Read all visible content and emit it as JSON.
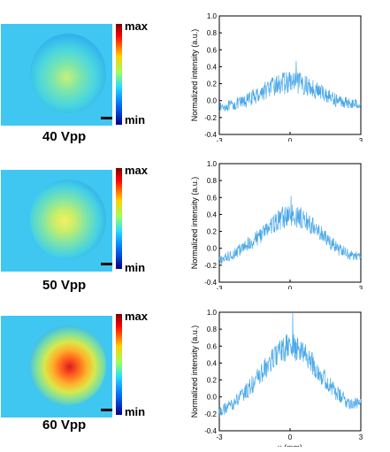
{
  "colorbar": {
    "max_label": "max",
    "min_label": "min"
  },
  "panels": [
    {
      "label": "40 Vpp"
    },
    {
      "label": "50 Vpp"
    },
    {
      "label": "60 Vpp"
    }
  ],
  "chart_data": [
    {
      "type": "line",
      "title": "",
      "xlabel": "",
      "ylabel": "Normalized intensity (a.u.)",
      "xlim": [
        -3,
        3
      ],
      "ylim": [
        -0.4,
        1.0
      ],
      "xticks": [
        "-3",
        "0",
        "3"
      ],
      "yticks": [
        "-0.4",
        "-0.2",
        "0.0",
        "0.2",
        "0.4",
        "0.6",
        "0.8",
        "1.0"
      ],
      "series": [
        {
          "x": [
            -3,
            -2.5,
            -2,
            -1.5,
            -1,
            -0.5,
            0,
            0.5,
            1,
            1.5,
            2,
            2.5,
            3
          ],
          "values": [
            -0.08,
            -0.06,
            -0.02,
            0.05,
            0.13,
            0.19,
            0.22,
            0.2,
            0.14,
            0.07,
            0.0,
            -0.03,
            -0.04
          ]
        }
      ],
      "peak": 0.47,
      "noise": 0.1,
      "color": "#4aa8e8"
    },
    {
      "type": "line",
      "title": "",
      "xlabel": "",
      "ylabel": "Normalized intensity (a.u.)",
      "xlim": [
        -3,
        3
      ],
      "ylim": [
        -0.4,
        1.0
      ],
      "xticks": [
        "-3",
        "0",
        "3"
      ],
      "yticks": [
        "-0.4",
        "-0.2",
        "0.0",
        "0.2",
        "0.4",
        "0.6",
        "0.8",
        "1.0"
      ],
      "series": [
        {
          "x": [
            -3,
            -2.5,
            -2,
            -1.5,
            -1,
            -0.5,
            0,
            0.5,
            1,
            1.5,
            2,
            2.5,
            3
          ],
          "values": [
            -0.15,
            -0.08,
            0.0,
            0.1,
            0.22,
            0.33,
            0.4,
            0.36,
            0.25,
            0.12,
            0.0,
            -0.08,
            -0.1
          ]
        }
      ],
      "peak": 0.62,
      "noise": 0.1,
      "color": "#4aa8e8"
    },
    {
      "type": "line",
      "title": "",
      "xlabel": "x (mm)",
      "ylabel": "Normalized intensity (a.u.)",
      "xlim": [
        -3,
        3
      ],
      "ylim": [
        -0.4,
        1.0
      ],
      "xticks": [
        "-3",
        "0",
        "3"
      ],
      "yticks": [
        "-0.4",
        "-0.2",
        "0.0",
        "0.2",
        "0.4",
        "0.6",
        "0.8",
        "1.0"
      ],
      "series": [
        {
          "x": [
            -3,
            -2.5,
            -2,
            -1.5,
            -1,
            -0.5,
            0,
            0.5,
            1,
            1.5,
            2,
            2.5,
            3
          ],
          "values": [
            -0.18,
            -0.1,
            0.02,
            0.18,
            0.35,
            0.52,
            0.6,
            0.55,
            0.38,
            0.2,
            0.03,
            -0.07,
            -0.08
          ]
        }
      ],
      "peak": 1.0,
      "noise": 0.12,
      "color": "#4aa8e8"
    }
  ]
}
